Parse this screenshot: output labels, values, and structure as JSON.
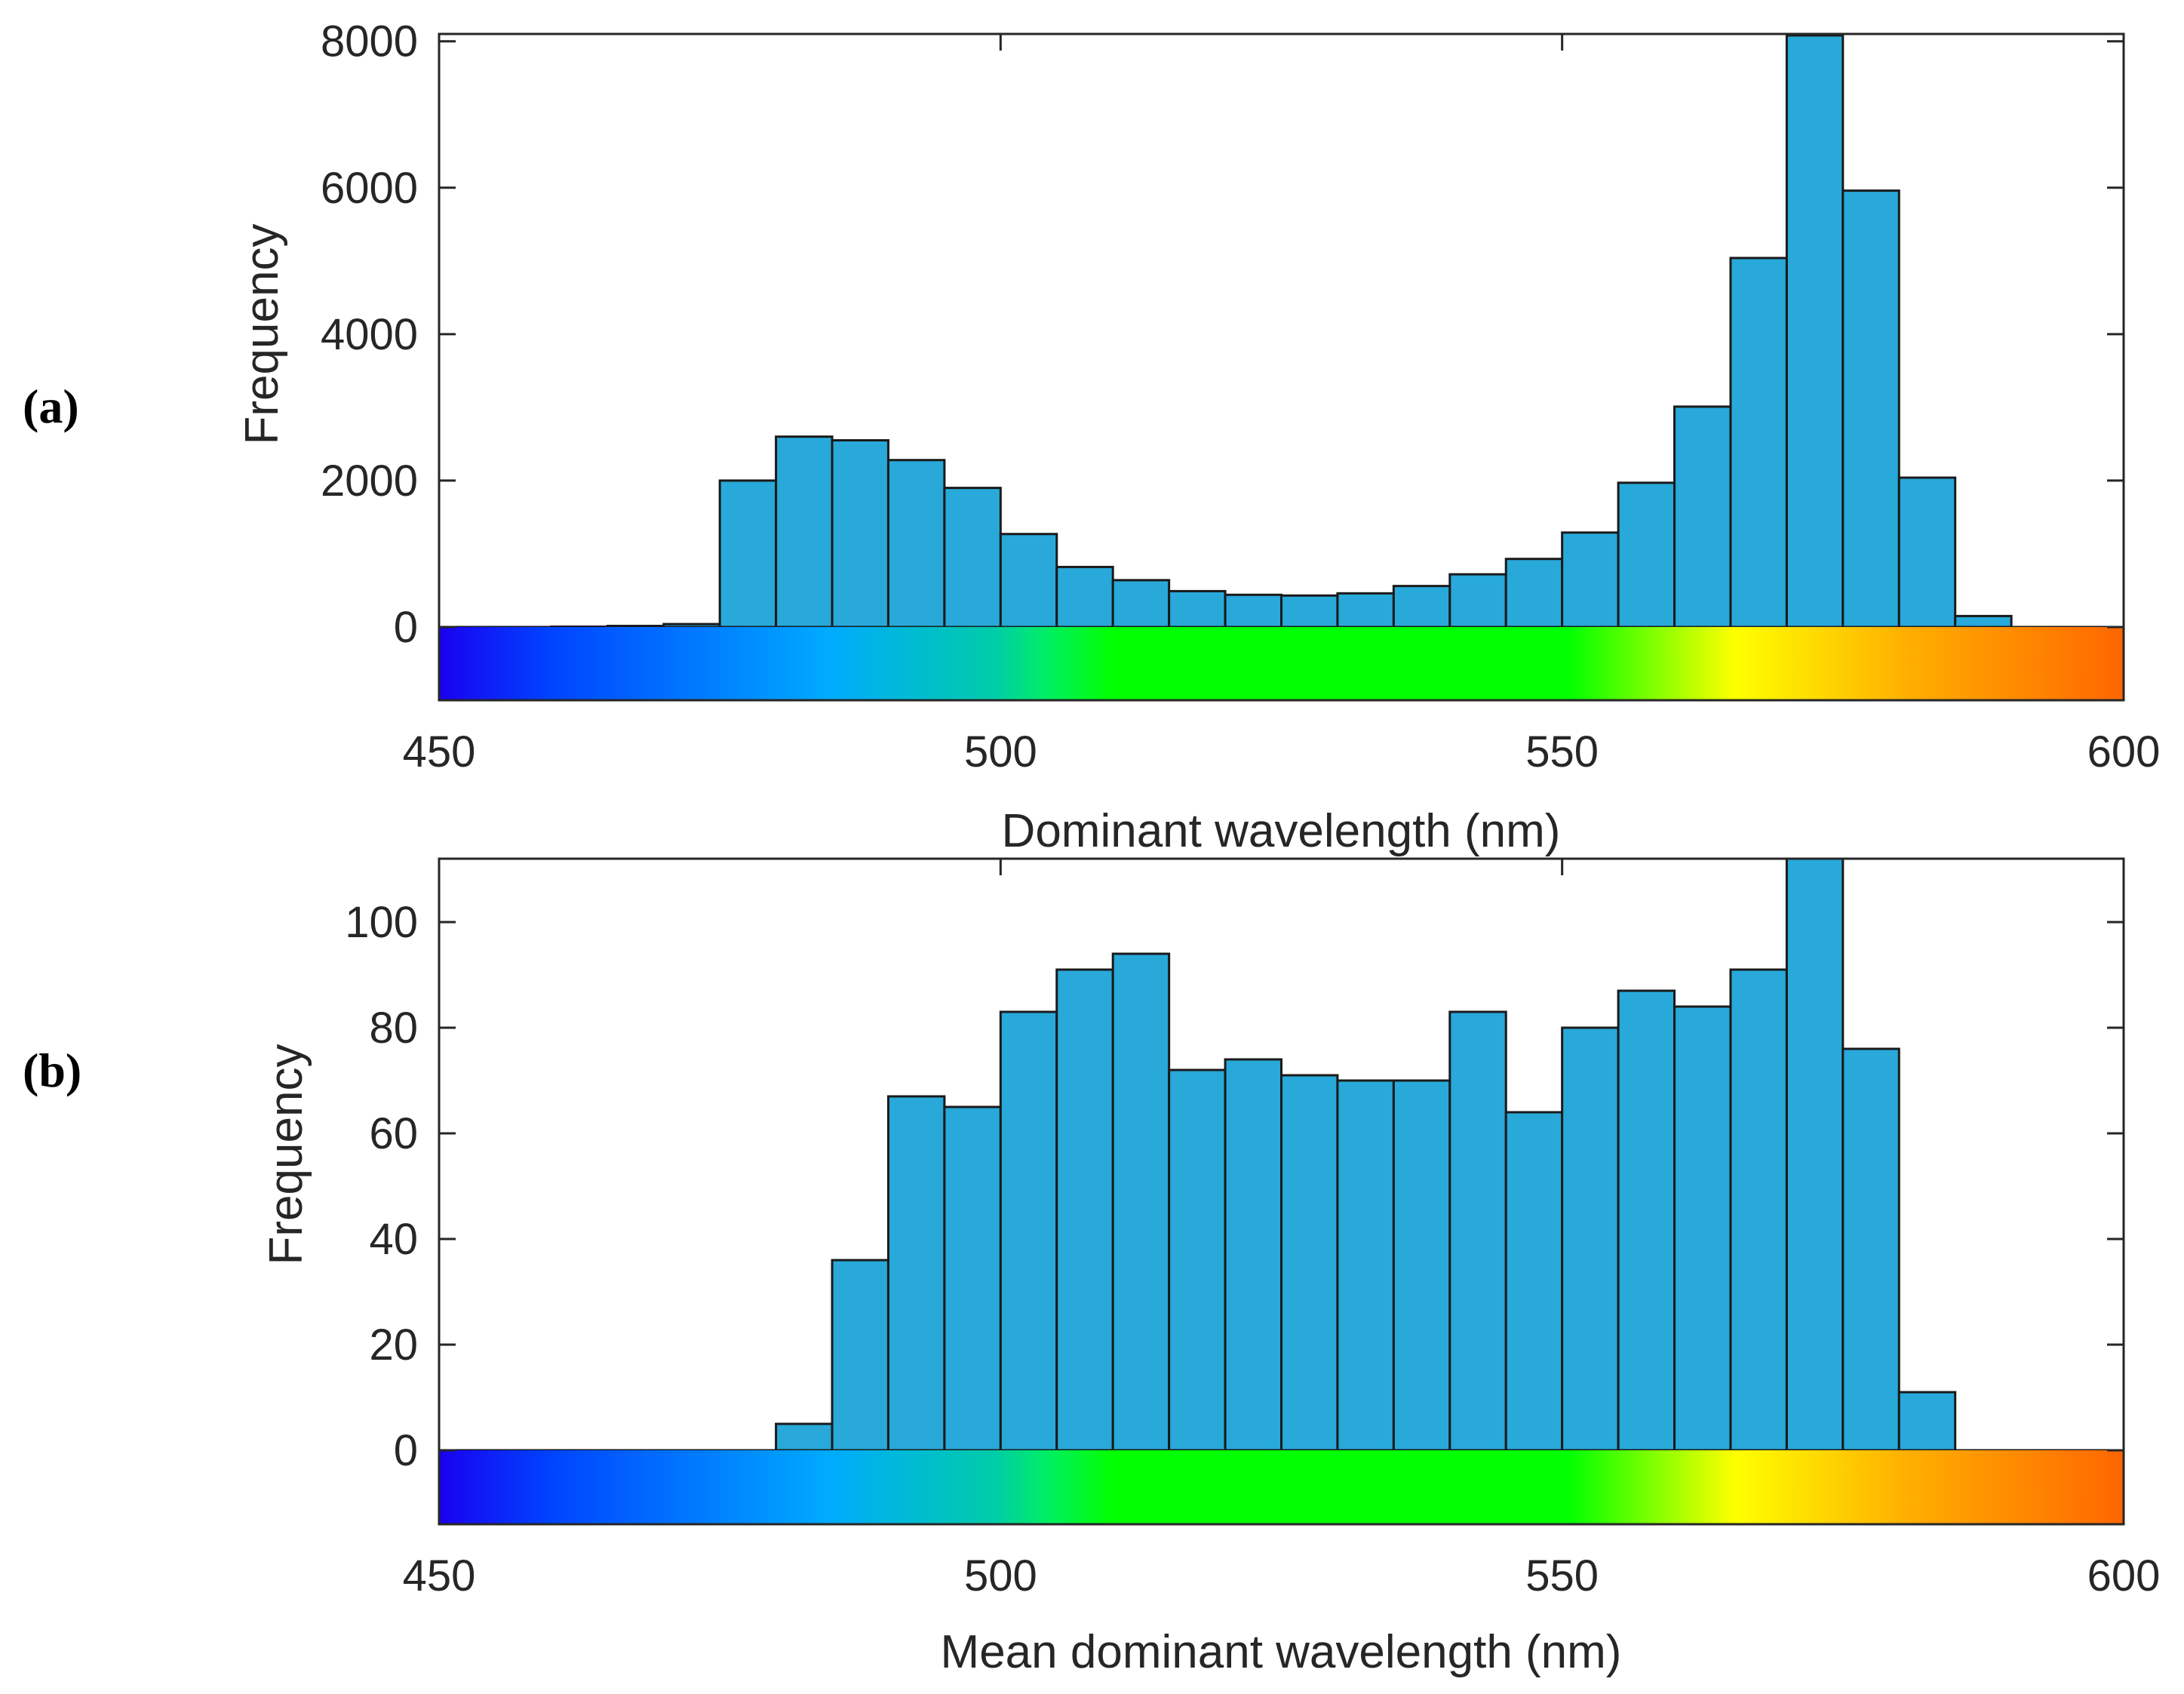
{
  "chart_data": [
    {
      "type": "bar",
      "panel_label": "(a)",
      "xlabel": "Dominant wavelength (nm)",
      "ylabel": "Frequency",
      "xlim": [
        450,
        600
      ],
      "ylim": [
        -1000,
        8100
      ],
      "bin_width": 5,
      "x_ticks": [
        450,
        500,
        550,
        600
      ],
      "y_ticks": [
        0,
        2000,
        4000,
        6000,
        8000
      ],
      "bin_starts": [
        450,
        455,
        460,
        465,
        470,
        475,
        480,
        485,
        490,
        495,
        500,
        505,
        510,
        515,
        520,
        525,
        530,
        535,
        540,
        545,
        550,
        555,
        560,
        565,
        570,
        575,
        580,
        585,
        590,
        595
      ],
      "values": [
        0,
        0,
        5,
        15,
        40,
        2000,
        2600,
        2550,
        2280,
        1900,
        1270,
        820,
        640,
        490,
        440,
        430,
        460,
        560,
        720,
        930,
        1290,
        1970,
        3010,
        5040,
        8080,
        5960,
        2040,
        150,
        0,
        0
      ],
      "bar_color": "#28a9da"
    },
    {
      "type": "bar",
      "panel_label": "(b)",
      "xlabel": "Mean dominant wavelength (nm)",
      "ylabel": "Frequency",
      "xlim": [
        450,
        600
      ],
      "ylim": [
        -14,
        112
      ],
      "bin_width": 5,
      "x_ticks": [
        450,
        500,
        550,
        600
      ],
      "y_ticks": [
        0,
        20,
        40,
        60,
        80,
        100
      ],
      "bin_starts": [
        450,
        455,
        460,
        465,
        470,
        475,
        480,
        485,
        490,
        495,
        500,
        505,
        510,
        515,
        520,
        525,
        530,
        535,
        540,
        545,
        550,
        555,
        560,
        565,
        570,
        575,
        580,
        585,
        590,
        595
      ],
      "values": [
        0,
        0,
        0,
        0,
        0,
        0,
        5,
        36,
        67,
        65,
        83,
        91,
        94,
        72,
        74,
        71,
        70,
        70,
        83,
        64,
        80,
        87,
        84,
        91,
        112,
        76,
        11,
        0,
        0,
        0
      ],
      "bar_color": "#28a9da"
    }
  ],
  "spectrum_colors": {
    "violet": "#1a00f0",
    "blue": "#0044ff",
    "sky": "#00aaff",
    "cyan": "#00cca8",
    "spring": "#00ee66",
    "green": "#00ff00",
    "yellow": "#ffff00",
    "amber": "#ffb000",
    "orange": "#ff6600"
  }
}
